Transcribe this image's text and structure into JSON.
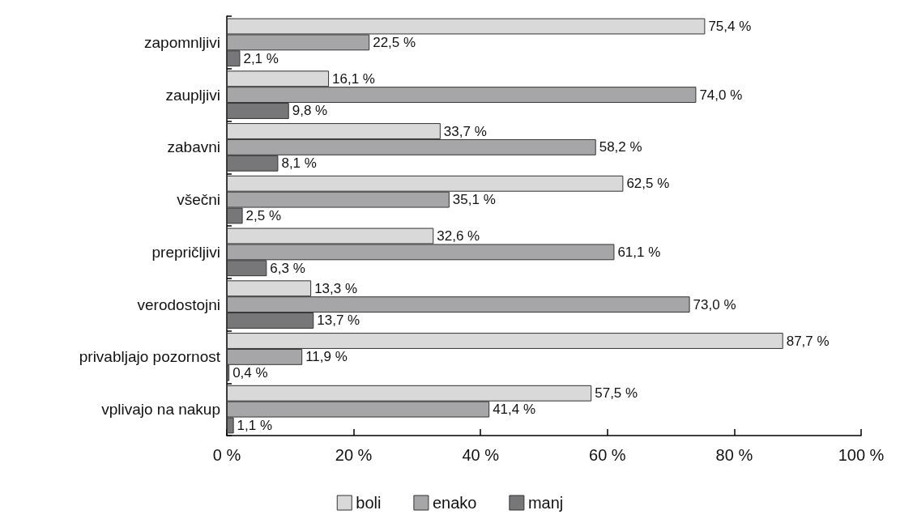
{
  "chart_data": {
    "type": "bar",
    "orientation": "horizontal",
    "categories": [
      "zapomnljivi",
      "zaupljivi",
      "zabavni",
      "všečni",
      "prepričljivi",
      "verodostojni",
      "privabljajo pozornost",
      "vplivajo na nakup"
    ],
    "series": [
      {
        "name": "boli",
        "color": "#d9d9d9",
        "values": [
          75.4,
          16.1,
          33.7,
          62.5,
          32.6,
          13.3,
          87.7,
          57.5
        ],
        "value_labels": [
          "75,4 %",
          "16,1 %",
          "33,7 %",
          "62,5 %",
          "32,6 %",
          "13,3 %",
          "87,7 %",
          "57,5 %"
        ]
      },
      {
        "name": "enako",
        "color": "#a6a6a8",
        "values": [
          22.5,
          74.0,
          58.2,
          35.1,
          61.1,
          73.0,
          11.9,
          41.4
        ],
        "value_labels": [
          "22,5 %",
          "74,0 %",
          "58,2 %",
          "35,1 %",
          "61,1 %",
          "73,0 %",
          "11,9 %",
          "41,4 %"
        ]
      },
      {
        "name": "manj",
        "color": "#77777a",
        "values": [
          2.1,
          9.8,
          8.1,
          2.5,
          6.3,
          13.7,
          0.4,
          1.1
        ],
        "value_labels": [
          "2,1 %",
          "9,8 %",
          "8,1 %",
          "2,5 %",
          "6,3 %",
          "13,7 %",
          "0,4 %",
          "1,1 %"
        ]
      }
    ],
    "xlim": [
      0,
      100
    ],
    "xticks": [
      {
        "value": 0,
        "label": "0 %"
      },
      {
        "value": 20,
        "label": "20 %"
      },
      {
        "value": 40,
        "label": "40 %"
      },
      {
        "value": 60,
        "label": "60 %"
      },
      {
        "value": 80,
        "label": "80 %"
      },
      {
        "value": 100,
        "label": "100 %"
      }
    ],
    "grid": false,
    "legend": "bottom"
  }
}
